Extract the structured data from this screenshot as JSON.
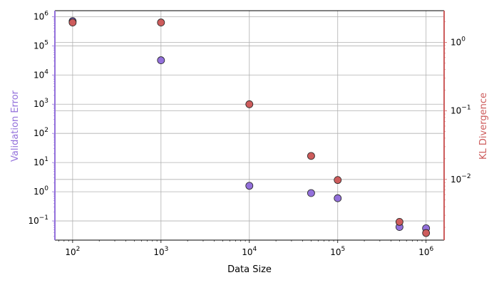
{
  "chart_data": {
    "type": "scatter",
    "xlabel": "Data Size",
    "ylabel": "Validation Error",
    "ylabel_right": "KL Divergence",
    "xscale": "log",
    "yscale": "log",
    "yscale_right": "log",
    "xlim": [
      63,
      1600000
    ],
    "ylim": [
      0.022,
      1600000
    ],
    "ylim_right": [
      0.0013,
      2.9
    ],
    "grid": true,
    "x_ticks": [
      {
        "value": 100,
        "label": "10",
        "exp": "2"
      },
      {
        "value": 1000,
        "label": "10",
        "exp": "3"
      },
      {
        "value": 10000,
        "label": "10",
        "exp": "4"
      },
      {
        "value": 100000,
        "label": "10",
        "exp": "5"
      },
      {
        "value": 1000000,
        "label": "10",
        "exp": "6"
      }
    ],
    "y_ticks": [
      {
        "value": 0.1,
        "label": "10",
        "exp": "−1"
      },
      {
        "value": 1,
        "label": "10",
        "exp": "0"
      },
      {
        "value": 10,
        "label": "10",
        "exp": "1"
      },
      {
        "value": 100,
        "label": "10",
        "exp": "2"
      },
      {
        "value": 1000,
        "label": "10",
        "exp": "3"
      },
      {
        "value": 10000,
        "label": "10",
        "exp": "4"
      },
      {
        "value": 100000,
        "label": "10",
        "exp": "5"
      },
      {
        "value": 1000000,
        "label": "10",
        "exp": "6"
      }
    ],
    "y_ticks_right": [
      {
        "value": 0.01,
        "label": "10",
        "exp": "−2"
      },
      {
        "value": 0.1,
        "label": "10",
        "exp": "−1"
      },
      {
        "value": 1,
        "label": "10",
        "exp": "0"
      }
    ],
    "series": [
      {
        "axis": "left",
        "color": "#9370DB",
        "points": [
          {
            "x": 100,
            "y": 700000
          },
          {
            "x": 1000,
            "y": 32000
          },
          {
            "x": 10000,
            "y": 1.6
          },
          {
            "x": 50000,
            "y": 0.9
          },
          {
            "x": 100000,
            "y": 0.6
          },
          {
            "x": 500000,
            "y": 0.062
          },
          {
            "x": 1000000,
            "y": 0.056
          }
        ]
      },
      {
        "axis": "right",
        "color": "#CD5C5C",
        "points": [
          {
            "x": 100,
            "y": 1.95
          },
          {
            "x": 1000,
            "y": 1.95
          },
          {
            "x": 10000,
            "y": 0.125
          },
          {
            "x": 50000,
            "y": 0.022
          },
          {
            "x": 100000,
            "y": 0.0098
          },
          {
            "x": 500000,
            "y": 0.0024
          },
          {
            "x": 1000000,
            "y": 0.00165
          }
        ]
      }
    ]
  }
}
